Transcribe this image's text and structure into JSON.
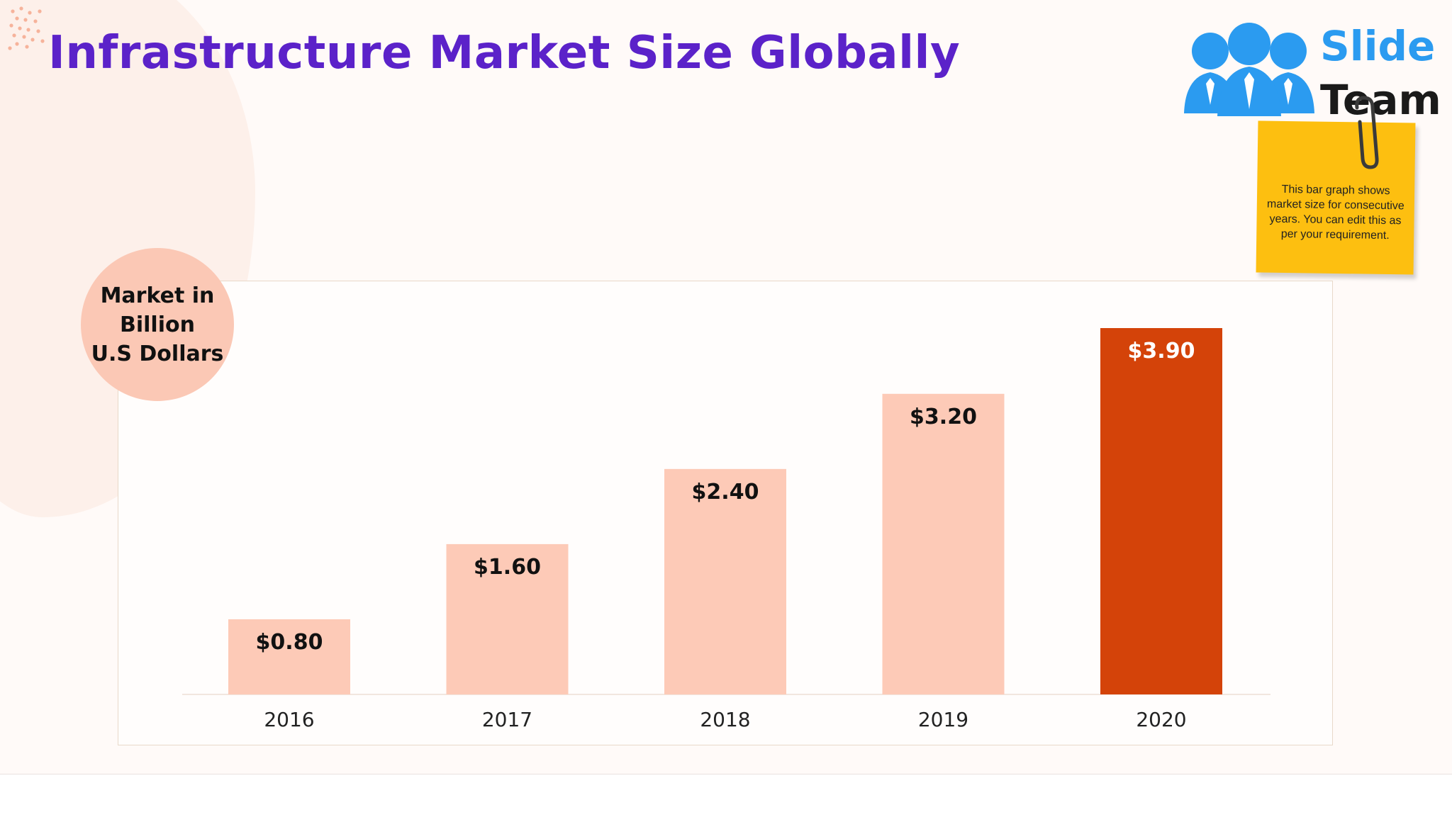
{
  "slide": {
    "title": "Infrastructure Market Size Globally",
    "unit_label": "Market in\nBillion\nU.S Dollars",
    "note": "This bar graph shows market size for consecutive years. You can edit this as per your requirement.",
    "logo": {
      "word1": "Slide",
      "word2": "Team",
      "icon": "people-group-icon"
    }
  },
  "colors": {
    "title": "#5b22c9",
    "bar": "#fdcab7",
    "bar_highlight": "#d44309",
    "note": "#fdbf10",
    "logo_blue": "#2b9bf0"
  },
  "chart_data": {
    "type": "bar",
    "categories": [
      "2016",
      "2017",
      "2018",
      "2019",
      "2020"
    ],
    "values": [
      0.8,
      1.6,
      2.4,
      3.2,
      3.9
    ],
    "data_labels": [
      "$0.80",
      "$1.60",
      "$2.40",
      "$3.20",
      "$3.90"
    ],
    "highlight_index": 4,
    "title": "",
    "xlabel": "",
    "ylabel": "Market in Billion U.S Dollars",
    "ylim": [
      0,
      3.9
    ],
    "grid": false,
    "legend": "none"
  }
}
